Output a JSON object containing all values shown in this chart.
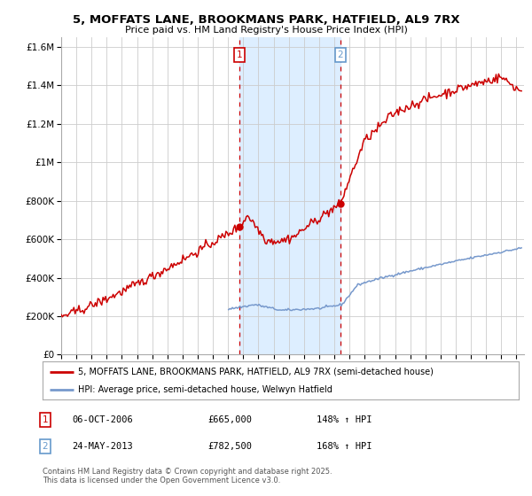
{
  "title": "5, MOFFATS LANE, BROOKMANS PARK, HATFIELD, AL9 7RX",
  "subtitle": "Price paid vs. HM Land Registry's House Price Index (HPI)",
  "xlim_start": 1995.0,
  "xlim_end": 2025.5,
  "ylim": [
    0,
    1650000
  ],
  "yticks": [
    0,
    200000,
    400000,
    600000,
    800000,
    1000000,
    1200000,
    1400000,
    1600000
  ],
  "ytick_labels": [
    "£0",
    "£200K",
    "£400K",
    "£600K",
    "£800K",
    "£1M",
    "£1.2M",
    "£1.4M",
    "£1.6M"
  ],
  "marker1_x": 2006.76,
  "marker1_y": 665000,
  "marker2_x": 2013.39,
  "marker2_y": 782500,
  "marker1_label": "1",
  "marker2_label": "2",
  "shade_start": 2006.76,
  "shade_end": 2013.39,
  "shade_color": "#ddeeff",
  "vline1_color": "#cc0000",
  "vline2_color": "#cc0000",
  "property_color": "#cc0000",
  "hpi_color": "#7799cc",
  "box1_color": "#cc0000",
  "box2_color": "#6699cc",
  "legend1": "5, MOFFATS LANE, BROOKMANS PARK, HATFIELD, AL9 7RX (semi-detached house)",
  "legend2": "HPI: Average price, semi-detached house, Welwyn Hatfield",
  "annotation1": "06-OCT-2006",
  "annotation1_price": "£665,000",
  "annotation1_pct": "148% ↑ HPI",
  "annotation2": "24-MAY-2013",
  "annotation2_price": "£782,500",
  "annotation2_pct": "168% ↑ HPI",
  "footer": "Contains HM Land Registry data © Crown copyright and database right 2025.\nThis data is licensed under the Open Government Licence v3.0.",
  "bg_color": "#ffffff",
  "grid_color": "#cccccc",
  "xticks": [
    1995,
    1996,
    1997,
    1998,
    1999,
    2000,
    2001,
    2002,
    2003,
    2004,
    2005,
    2006,
    2007,
    2008,
    2009,
    2010,
    2011,
    2012,
    2013,
    2014,
    2015,
    2016,
    2017,
    2018,
    2019,
    2020,
    2021,
    2022,
    2023,
    2024,
    2025
  ]
}
